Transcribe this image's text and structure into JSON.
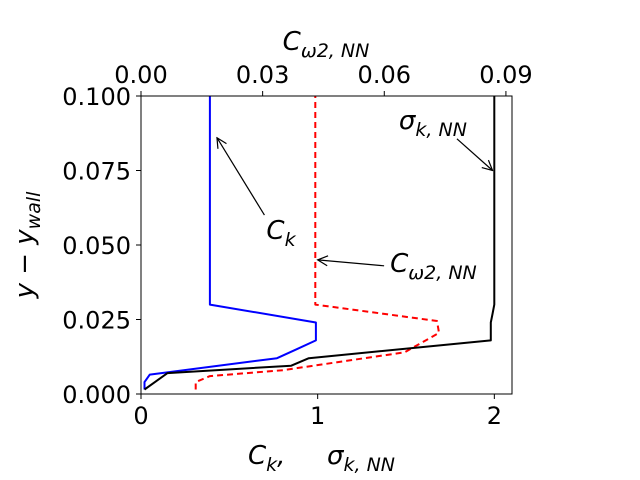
{
  "chart_data": {
    "type": "line",
    "bottom_axis": {
      "label_parts": [
        {
          "base": "C",
          "sub": "k",
          "suffix": ","
        },
        {
          "base": "σ",
          "sub": "k, NN",
          "suffix": ""
        }
      ],
      "lim": [
        0,
        2.1
      ],
      "ticks": [
        0,
        1,
        2
      ],
      "tick_labels": [
        "0",
        "1",
        "2"
      ]
    },
    "top_axis": {
      "label": {
        "base": "C",
        "sub": "ω2, NN"
      },
      "lim": [
        0,
        0.0915
      ],
      "ticks": [
        0.0,
        0.03,
        0.06,
        0.09
      ],
      "tick_labels": [
        "0.00",
        "0.03",
        "0.06",
        "0.09"
      ]
    },
    "y_axis": {
      "label": "y − y_wall",
      "lim": [
        0,
        0.1
      ],
      "ticks": [
        0.0,
        0.025,
        0.05,
        0.075,
        0.1
      ],
      "tick_labels": [
        "0.000",
        "0.025",
        "0.050",
        "0.075",
        "0.100"
      ]
    },
    "grid": false,
    "series": [
      {
        "key": "ck",
        "axis": "bottom",
        "color": "#0000ff",
        "dash": "",
        "points": [
          [
            0.02,
            0.0015
          ],
          [
            0.02,
            0.004
          ],
          [
            0.05,
            0.0065
          ],
          [
            0.77,
            0.012
          ],
          [
            0.88,
            0.015
          ],
          [
            0.99,
            0.018
          ],
          [
            0.99,
            0.024
          ],
          [
            0.39,
            0.03
          ],
          [
            0.39,
            0.1
          ]
        ]
      },
      {
        "key": "cw2",
        "axis": "top",
        "color": "#ff0000",
        "dash": "6,4",
        "points": [
          [
            0.0135,
            0.0015
          ],
          [
            0.0135,
            0.004
          ],
          [
            0.017,
            0.006
          ],
          [
            0.035,
            0.008
          ],
          [
            0.065,
            0.014
          ],
          [
            0.0735,
            0.0205
          ],
          [
            0.073,
            0.0245
          ],
          [
            0.043,
            0.03
          ],
          [
            0.043,
            0.1
          ]
        ]
      },
      {
        "key": "sk",
        "axis": "bottom",
        "color": "#000000",
        "dash": "",
        "points": [
          [
            0.02,
            0.0015
          ],
          [
            0.15,
            0.007
          ],
          [
            0.85,
            0.0095
          ],
          [
            0.95,
            0.012
          ],
          [
            1.98,
            0.018
          ],
          [
            1.98,
            0.024
          ],
          [
            1.99,
            0.027
          ],
          [
            2.0,
            0.03
          ],
          [
            2.0,
            0.1
          ]
        ]
      }
    ],
    "annotations": [
      {
        "base": "C",
        "sub": "k",
        "text_xy": [
          0.71,
          0.052
        ],
        "arrow_to": [
          0.43,
          0.086
        ]
      },
      {
        "base": "C",
        "sub": "ω2, NN",
        "text_xy": [
          1.41,
          0.041
        ],
        "arrow_to": [
          1.0,
          0.045
        ]
      },
      {
        "base": "σ",
        "sub": "k, NN",
        "text_xy": [
          1.46,
          0.089
        ],
        "arrow_to": [
          1.99,
          0.075
        ]
      }
    ]
  }
}
